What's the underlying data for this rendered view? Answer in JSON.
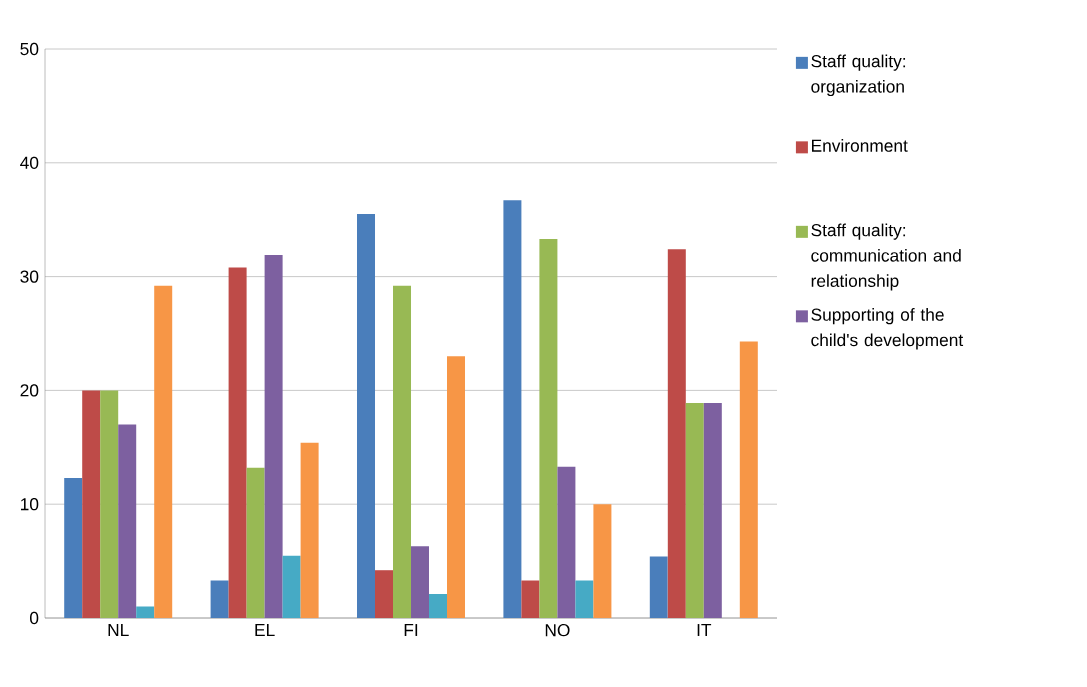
{
  "chart_data": {
    "type": "bar",
    "categories": [
      "NL",
      "EL",
      "FI",
      "NO",
      "IT"
    ],
    "series": [
      {
        "name": "Staff quality: organization",
        "color": "#4a7ebb",
        "values": [
          12.3,
          3.3,
          35.5,
          36.7,
          5.4
        ]
      },
      {
        "name": "Environment",
        "color": "#be4b48",
        "values": [
          20,
          30.8,
          4.2,
          3.3,
          32.4
        ]
      },
      {
        "name": "Staff quality: communication and relationship",
        "color": "#98b954",
        "values": [
          20,
          13.2,
          29.2,
          33.3,
          18.9
        ]
      },
      {
        "name": "Supporting of the child's development",
        "color": "#7d60a0",
        "values": [
          17,
          31.9,
          6.3,
          13.3,
          18.9
        ]
      },
      {
        "color": "#46aac5",
        "values": [
          1,
          5.5,
          2.1,
          3.3,
          null
        ]
      },
      {
        "color": "#f79646",
        "values": [
          29.2,
          15.4,
          23,
          10,
          24.3
        ]
      }
    ],
    "ylim": [
      0,
      50
    ],
    "yticks": [
      0,
      10,
      20,
      30,
      40,
      50
    ],
    "grid": "y",
    "legend": "right"
  }
}
